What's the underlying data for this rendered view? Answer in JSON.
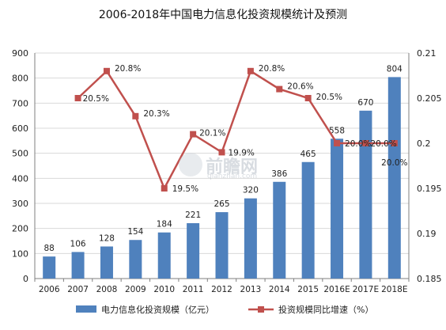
{
  "page": {
    "title": "2006-2018年中国电力信息化投资规模统计及预测"
  },
  "watermark": {
    "main": "前瞻网",
    "sub": "qianzhan.com"
  },
  "colors": {
    "bar": "#4f81bd",
    "line": "#c0504d",
    "grid": "#d9d9d9",
    "axis": "#7f7f7f"
  },
  "chart_data": {
    "type": "bar",
    "title": "2006-2018年中国电力信息化投资规模统计及预测",
    "categories": [
      "2006",
      "2007",
      "2008",
      "2009",
      "2010",
      "2011",
      "2012",
      "2013",
      "2014",
      "2015",
      "2016E",
      "2017E",
      "2018E"
    ],
    "series": [
      {
        "name": "电力信息化投资规模（亿元）",
        "type": "bar",
        "axis": "left",
        "values": [
          88,
          106,
          128,
          154,
          184,
          221,
          265,
          320,
          386,
          465,
          558,
          670,
          804
        ],
        "labels": [
          "88",
          "106",
          "128",
          "154",
          "184",
          "221",
          "265",
          "320",
          "386",
          "465",
          "558",
          "670",
          "804"
        ]
      },
      {
        "name": "投资规模同比增速（%）",
        "type": "line",
        "axis": "right",
        "values": [
          null,
          0.205,
          0.208,
          0.203,
          0.195,
          0.201,
          0.199,
          0.208,
          0.206,
          0.205,
          0.2,
          0.2,
          0.2
        ],
        "labels": [
          "",
          "20.5%",
          "20.8%",
          "20.3%",
          "19.5%",
          "20.1%",
          "19.9%",
          "20.8%",
          "20.6%",
          "20.5%",
          "20.0%",
          "20.0%",
          "20.0%"
        ]
      }
    ],
    "y_left": {
      "min": 0,
      "max": 900,
      "ticks": [
        "0",
        "100",
        "200",
        "300",
        "400",
        "500",
        "600",
        "700",
        "800",
        "900"
      ]
    },
    "y_right": {
      "min": 0.185,
      "max": 0.21,
      "ticks": [
        "0.185",
        "0.19",
        "0.195",
        "0.2",
        "0.205",
        "0.21"
      ]
    },
    "grid": true,
    "legend_position": "bottom"
  }
}
